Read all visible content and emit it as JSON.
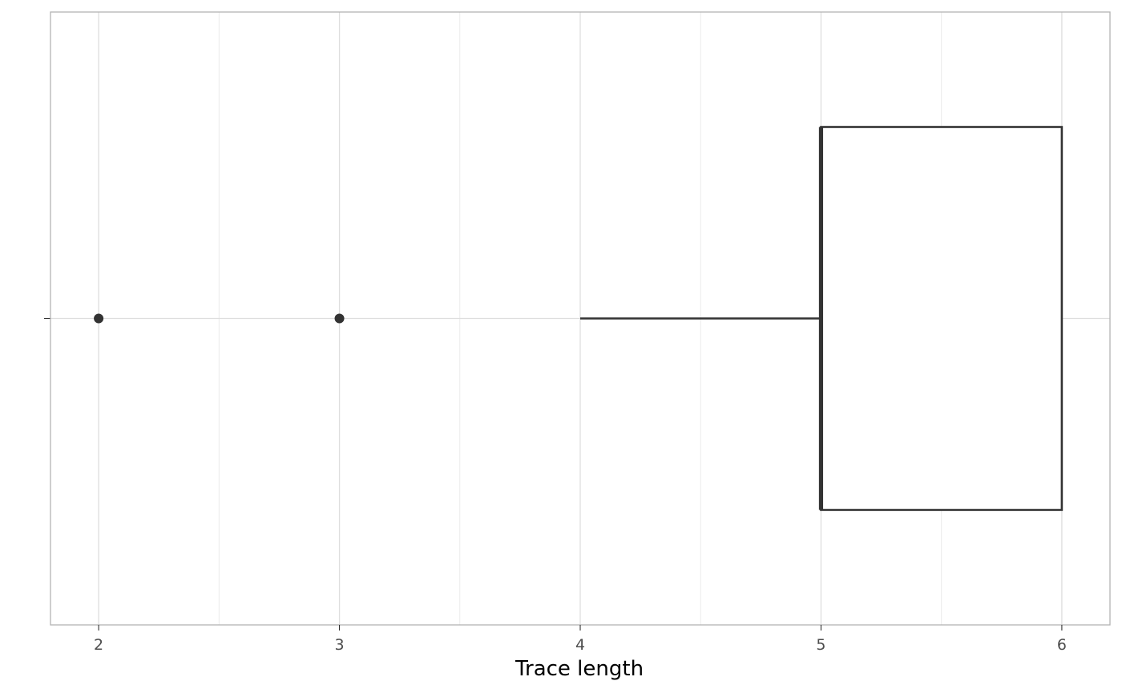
{
  "chart_data": {
    "type": "boxplot",
    "orientation": "horizontal",
    "title": "",
    "xlabel": "Trace length",
    "ylabel": "",
    "xlim": [
      1.8,
      6.2
    ],
    "x_ticks": [
      2,
      3,
      4,
      5,
      6
    ],
    "x_tick_labels": [
      "2",
      "3",
      "4",
      "5",
      "6"
    ],
    "x_minor_gridlines": [
      2.5,
      3.5,
      4.5,
      5.5
    ],
    "grid": true,
    "theme": "light",
    "box": {
      "lower_whisker": 4,
      "q1": 5,
      "median": 5,
      "q3": 6,
      "upper_whisker": 6
    },
    "outliers": [
      2,
      3
    ],
    "colors": {
      "box_line": "#333333",
      "outlier": "#333333",
      "grid": "#dedede",
      "panel_border": "#b3b3b3",
      "tick_label": "#4d4d4d",
      "axis_title": "#000000"
    }
  }
}
